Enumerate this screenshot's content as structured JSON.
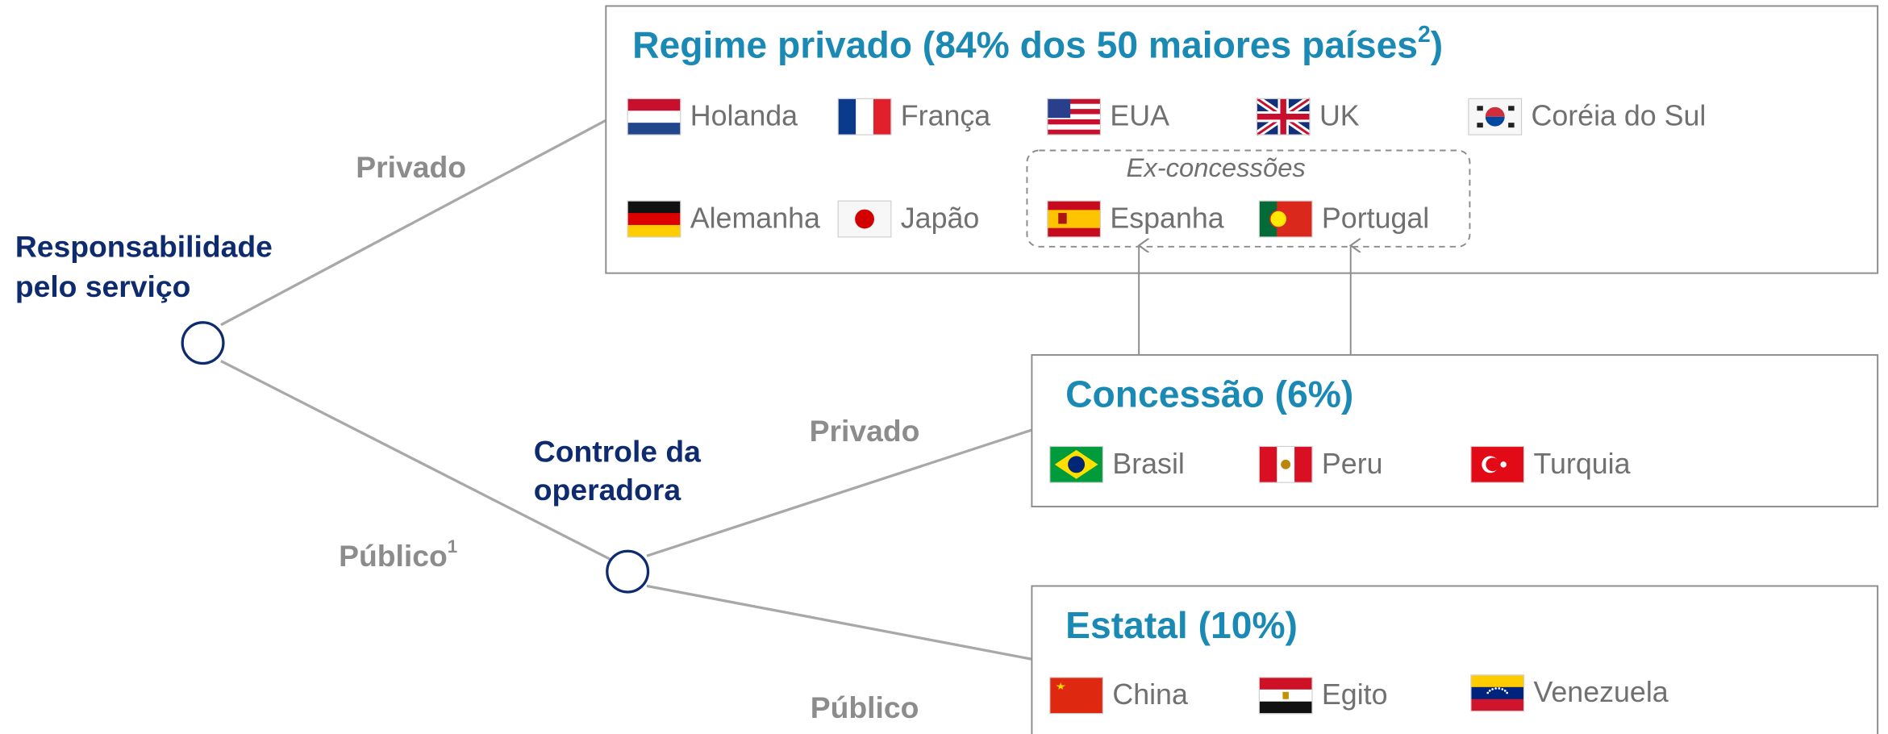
{
  "root": {
    "lines": [
      "Responsabilidade",
      "pelo serviço"
    ]
  },
  "root_edges": {
    "upper": "Privado",
    "lower": {
      "text": "Público",
      "sup": "1"
    }
  },
  "operator": {
    "lines": [
      "Controle da",
      "operadora"
    ]
  },
  "operator_edges": {
    "upper": "Privado",
    "lower": "Público"
  },
  "boxes": [
    {
      "title": {
        "text": "Regime privado (84% dos 50 maiores países",
        "sup": "2",
        "close": ")"
      },
      "countries": [
        "Holanda",
        "França",
        "EUA",
        "UK",
        "Coréia do Sul",
        "Alemanha",
        "Japão"
      ],
      "group": {
        "label": "Ex-concessões",
        "countries": [
          "Espanha",
          "Portugal"
        ]
      }
    },
    {
      "title": {
        "text": "Concessão (6%)"
      },
      "countries": [
        "Brasil",
        "Peru",
        "Turquia"
      ]
    },
    {
      "title": {
        "text": "Estatal (10%)"
      },
      "countries": [
        "China",
        "Egito",
        "Venezuela"
      ]
    }
  ]
}
